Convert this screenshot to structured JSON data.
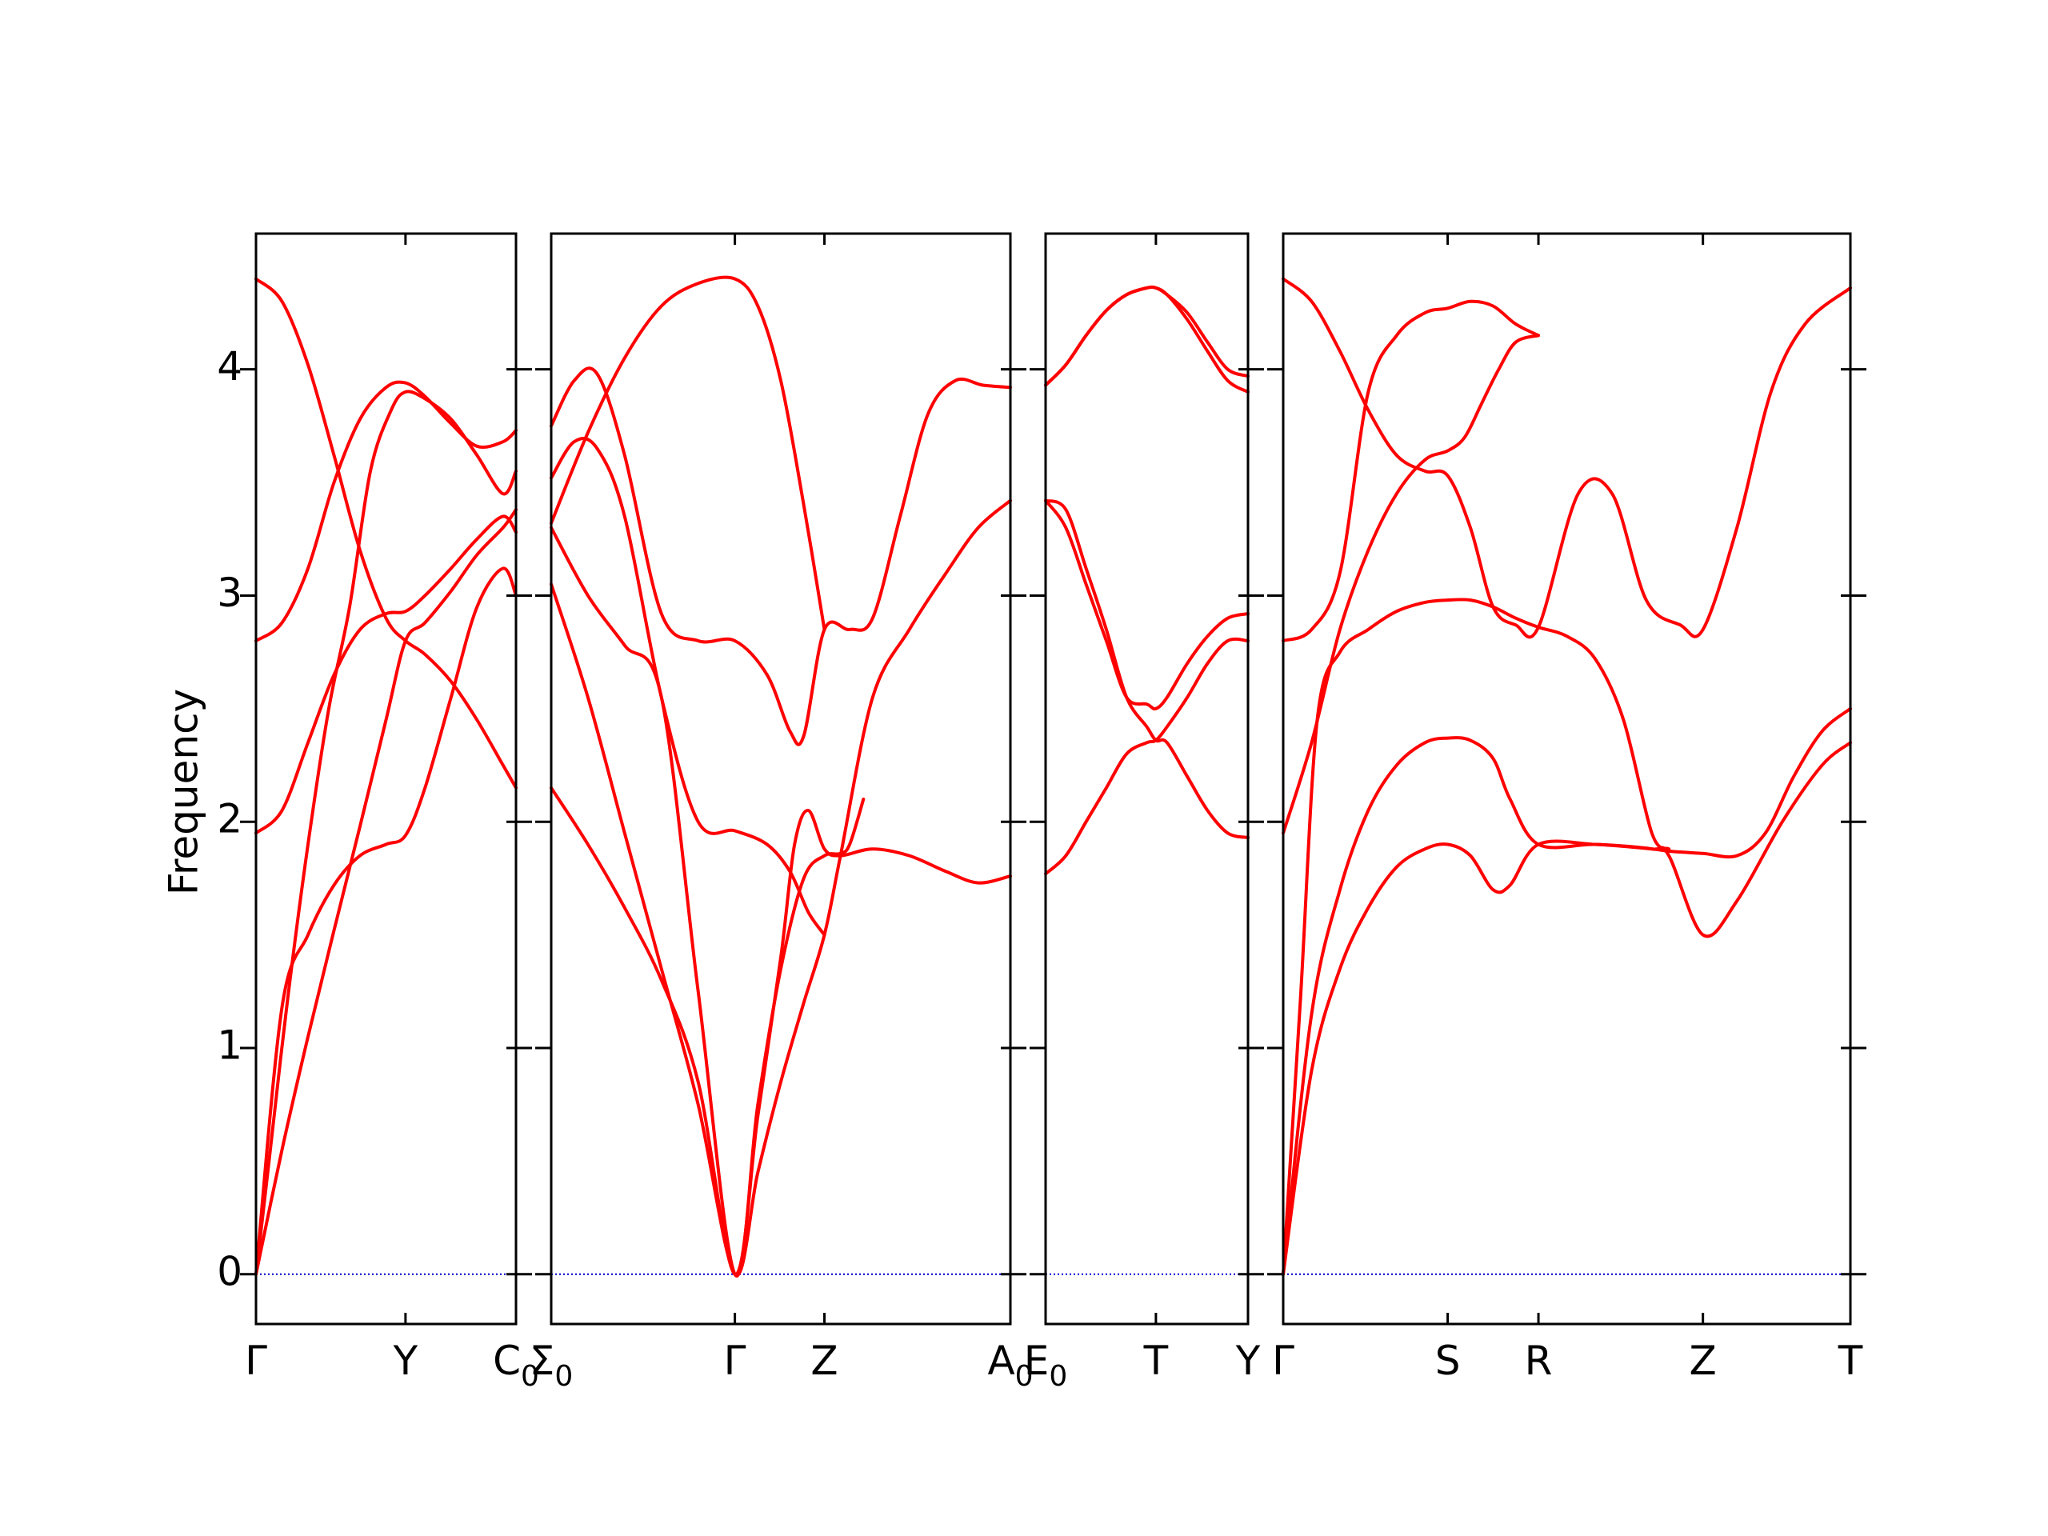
{
  "chart_data": {
    "type": "line",
    "ylabel": "Frequency",
    "ylim": [
      -0.22,
      4.6
    ],
    "yticks": [
      0,
      1,
      2,
      3,
      4
    ],
    "colors": {
      "bands": "#ff0000",
      "zero_line": "#0000cc",
      "axes": "#000000"
    },
    "panels": [
      {
        "xlim": [
          0,
          1
        ],
        "ticks": [
          {
            "x": 0,
            "label": "Γ"
          },
          {
            "x": 0.575,
            "label": "Y"
          },
          {
            "x": 1,
            "label": "C0"
          }
        ],
        "bands": [
          {
            "x": [
              0,
              0.1,
              0.2,
              0.3,
              0.4,
              0.5,
              0.575,
              0.65,
              0.75,
              0.85,
              0.95,
              1
            ],
            "y": [
              0,
              1.18,
              1.5,
              1.72,
              1.85,
              1.9,
              1.94,
              2.15,
              2.55,
              2.95,
              3.12,
              3.0
            ]
          },
          {
            "x": [
              0,
              0.1,
              0.2,
              0.3,
              0.4,
              0.5,
              0.575,
              0.65,
              0.75,
              0.85,
              0.95,
              1
            ],
            "y": [
              0,
              0.55,
              1.05,
              1.52,
              1.98,
              2.45,
              2.8,
              2.88,
              3.02,
              3.18,
              3.3,
              3.38
            ]
          },
          {
            "x": [
              0,
              0.05,
              0.12,
              0.2,
              0.28,
              0.36,
              0.44,
              0.52,
              0.575,
              0.65,
              0.75,
              0.85,
              0.95,
              1
            ],
            "y": [
              0,
              0.5,
              1.2,
              1.9,
              2.5,
              2.95,
              3.55,
              3.82,
              3.9,
              3.87,
              3.78,
              3.62,
              3.45,
              3.55
            ]
          },
          {
            "x": [
              0,
              0.1,
              0.2,
              0.3,
              0.4,
              0.5,
              0.575,
              0.65,
              0.75,
              0.85,
              0.95,
              1
            ],
            "y": [
              1.95,
              2.05,
              2.35,
              2.65,
              2.85,
              2.92,
              2.93,
              3.0,
              3.12,
              3.25,
              3.35,
              3.28
            ]
          },
          {
            "x": [
              0,
              0.1,
              0.2,
              0.3,
              0.4,
              0.5,
              0.575,
              0.65,
              0.75,
              0.85,
              0.95,
              1
            ],
            "y": [
              2.8,
              2.88,
              3.12,
              3.5,
              3.78,
              3.92,
              3.94,
              3.88,
              3.76,
              3.66,
              3.68,
              3.73
            ]
          },
          {
            "x": [
              0,
              0.1,
              0.2,
              0.3,
              0.4,
              0.5,
              0.575,
              0.65,
              0.75,
              0.85,
              0.95,
              1
            ],
            "y": [
              4.4,
              4.3,
              4.02,
              3.62,
              3.2,
              2.9,
              2.8,
              2.74,
              2.62,
              2.45,
              2.25,
              2.15
            ]
          }
        ]
      },
      {
        "xlim": [
          0,
          1
        ],
        "ticks": [
          {
            "x": 0,
            "label": "Σ0"
          },
          {
            "x": 0.4,
            "label": "Γ"
          },
          {
            "x": 0.595,
            "label": "Z"
          },
          {
            "x": 1,
            "label": "A0"
          }
        ],
        "bands": [
          {
            "x": [
              0,
              0.08,
              0.16,
              0.24,
              0.32,
              0.4,
              0.45,
              0.5,
              0.53,
              0.56,
              0.595,
              0.63,
              0.7,
              0.78,
              0.86,
              0.93,
              1
            ],
            "y": [
              2.15,
              1.9,
              1.62,
              1.3,
              0.85,
              0,
              0.7,
              1.4,
              1.9,
              2.05,
              1.88,
              1.85,
              1.88,
              1.85,
              1.78,
              1.73,
              1.76
            ]
          },
          {
            "x": [
              0,
              0.08,
              0.16,
              0.24,
              0.32,
              0.4,
              0.45,
              0.5,
              0.55,
              0.595,
              0.63,
              0.7,
              0.78,
              0.86,
              0.93,
              1
            ],
            "y": [
              3.05,
              2.55,
              1.95,
              1.35,
              0.75,
              0,
              0.45,
              0.85,
              1.2,
              1.5,
              1.85,
              2.55,
              2.85,
              3.1,
              3.3,
              3.42
            ]
          },
          {
            "x": [
              0,
              0.08,
              0.16,
              0.24,
              0.32,
              0.4,
              0.45,
              0.5,
              0.55,
              0.595,
              0.63,
              0.65,
              0.68
            ],
            "y": [
              3.3,
              3.0,
              2.78,
              2.55,
              1.25,
              0,
              0.75,
              1.35,
              1.75,
              1.85,
              1.86,
              1.9,
              2.1
            ]
          },
          {
            "x": [
              0,
              0.05,
              0.1,
              0.16,
              0.24,
              0.32,
              0.4,
              0.47,
              0.52,
              0.56,
              0.595
            ],
            "y": [
              3.52,
              3.68,
              3.65,
              3.35,
              2.55,
              2.0,
              1.96,
              1.9,
              1.78,
              1.6,
              1.5
            ]
          },
          {
            "x": [
              0,
              0.05,
              0.1,
              0.16,
              0.24,
              0.32,
              0.4,
              0.47,
              0.52,
              0.55,
              0.595,
              0.65,
              0.7,
              0.76,
              0.82,
              0.88,
              0.94,
              1
            ],
            "y": [
              3.75,
              3.95,
              3.98,
              3.62,
              2.92,
              2.8,
              2.8,
              2.65,
              2.4,
              2.38,
              2.85,
              2.85,
              2.9,
              3.35,
              3.8,
              3.95,
              3.93,
              3.92
            ]
          },
          {
            "x": [
              0,
              0.08,
              0.16,
              0.24,
              0.32,
              0.4,
              0.45,
              0.5,
              0.55,
              0.595
            ],
            "y": [
              3.32,
              3.72,
              4.05,
              4.28,
              4.38,
              4.4,
              4.28,
              3.95,
              3.4,
              2.85
            ]
          }
        ]
      },
      {
        "xlim": [
          0,
          1
        ],
        "ticks": [
          {
            "x": 0,
            "label": "E0"
          },
          {
            "x": 0.545,
            "label": "T"
          },
          {
            "x": 1,
            "label": "Y"
          }
        ],
        "bands": [
          {
            "x": [
              0,
              0.1,
              0.2,
              0.3,
              0.4,
              0.5,
              0.545,
              0.6,
              0.7,
              0.8,
              0.9,
              1
            ],
            "y": [
              1.77,
              1.85,
              2.0,
              2.15,
              2.3,
              2.35,
              2.36,
              2.42,
              2.55,
              2.7,
              2.8,
              2.8
            ]
          },
          {
            "x": [
              0,
              0.1,
              0.2,
              0.3,
              0.4,
              0.5,
              0.545,
              0.6,
              0.7,
              0.8,
              0.9,
              1
            ],
            "y": [
              3.42,
              3.3,
              3.05,
              2.8,
              2.55,
              2.52,
              2.5,
              2.55,
              2.7,
              2.82,
              2.9,
              2.92
            ]
          },
          {
            "x": [
              0,
              0.1,
              0.2,
              0.3,
              0.4,
              0.5,
              0.545,
              0.6,
              0.7,
              0.8,
              0.9,
              1
            ],
            "y": [
              3.42,
              3.38,
              3.12,
              2.85,
              2.55,
              2.42,
              2.36,
              2.35,
              2.2,
              2.05,
              1.95,
              1.93
            ]
          },
          {
            "x": [
              0,
              0.1,
              0.2,
              0.3,
              0.4,
              0.5,
              0.545,
              0.6,
              0.7,
              0.8,
              0.9,
              1
            ],
            "y": [
              3.93,
              4.02,
              4.15,
              4.26,
              4.33,
              4.36,
              4.36,
              4.33,
              4.25,
              4.12,
              4.0,
              3.97
            ]
          },
          {
            "x": [
              0,
              0.1,
              0.2,
              0.3,
              0.4,
              0.5,
              0.545,
              0.6,
              0.7,
              0.8,
              0.9,
              1
            ],
            "y": [
              3.93,
              4.02,
              4.15,
              4.26,
              4.33,
              4.36,
              4.36,
              4.33,
              4.22,
              4.08,
              3.95,
              3.9
            ]
          }
        ]
      },
      {
        "xlim": [
          0,
          1
        ],
        "ticks": [
          {
            "x": 0,
            "label": "Γ"
          },
          {
            "x": 0.29,
            "label": "S"
          },
          {
            "x": 0.45,
            "label": "R"
          },
          {
            "x": 0.74,
            "label": "Z"
          },
          {
            "x": 1,
            "label": "T"
          }
        ],
        "bands": [
          {
            "x": [
              0,
              0.05,
              0.1,
              0.15,
              0.2,
              0.25,
              0.29,
              0.33,
              0.37,
              0.4,
              0.45,
              0.55,
              0.65,
              0.68,
              0.74,
              0.8,
              0.88,
              0.95,
              1
            ],
            "y": [
              0,
              0.9,
              1.35,
              1.62,
              1.8,
              1.88,
              1.9,
              1.85,
              1.7,
              1.72,
              1.9,
              1.9,
              1.88,
              1.85,
              1.5,
              1.65,
              2.0,
              2.25,
              2.35
            ]
          },
          {
            "x": [
              0,
              0.05,
              0.1,
              0.15,
              0.2,
              0.25,
              0.29,
              0.33,
              0.37,
              0.4,
              0.45,
              0.55,
              0.65,
              0.68,
              0.74,
              0.8,
              0.85,
              0.9,
              0.95,
              1
            ],
            "y": [
              0,
              1.15,
              1.7,
              2.05,
              2.25,
              2.35,
              2.37,
              2.36,
              2.28,
              2.1,
              1.9,
              1.9,
              1.88,
              1.87,
              1.86,
              1.85,
              1.95,
              2.2,
              2.4,
              2.5
            ]
          },
          {
            "x": [
              0,
              0.03,
              0.06,
              0.1,
              0.15,
              0.2,
              0.25,
              0.29,
              0.33,
              0.37,
              0.41,
              0.45,
              0.5,
              0.55,
              0.6,
              0.65,
              0.68
            ],
            "y": [
              0,
              1.2,
              2.45,
              2.75,
              2.85,
              2.93,
              2.97,
              2.98,
              2.98,
              2.95,
              2.9,
              2.86,
              2.82,
              2.72,
              2.45,
              1.95,
              1.88
            ]
          },
          {
            "x": [
              0,
              0.05,
              0.1,
              0.15,
              0.2,
              0.25,
              0.29,
              0.32,
              0.35,
              0.38,
              0.41,
              0.45
            ],
            "y": [
              1.95,
              2.35,
              2.85,
              3.2,
              3.45,
              3.6,
              3.64,
              3.7,
              3.85,
              4.0,
              4.12,
              4.15
            ]
          },
          {
            "x": [
              0,
              0.05,
              0.1,
              0.15,
              0.2,
              0.25,
              0.29,
              0.33,
              0.37,
              0.41,
              0.45
            ],
            "y": [
              2.8,
              2.85,
              3.1,
              3.9,
              4.15,
              4.25,
              4.27,
              4.3,
              4.28,
              4.2,
              4.15
            ]
          },
          {
            "x": [
              0,
              0.05,
              0.1,
              0.15,
              0.2,
              0.25,
              0.29,
              0.33,
              0.37,
              0.41,
              0.45,
              0.52,
              0.58,
              0.64,
              0.7,
              0.74,
              0.8,
              0.86,
              0.92,
              1
            ],
            "y": [
              4.4,
              4.3,
              4.08,
              3.82,
              3.62,
              3.55,
              3.53,
              3.3,
              2.95,
              2.87,
              2.86,
              3.45,
              3.45,
              2.98,
              2.87,
              2.85,
              3.3,
              3.9,
              4.2,
              4.36
            ]
          }
        ]
      }
    ]
  }
}
